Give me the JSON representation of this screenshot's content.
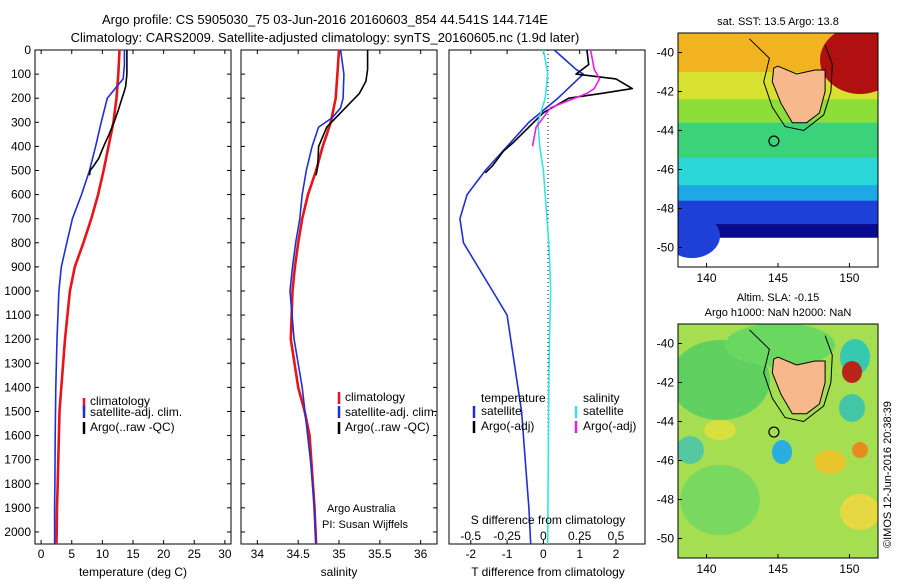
{
  "header": {
    "line1": "Argo profile: CS 5905030_75 03-Jun-2016 20160603_854 44.541S 144.714E",
    "line2": "Climatology: CARS2009. Satellite-adjusted climatology: synTS_20160605.nc (1.9d later)"
  },
  "colors": {
    "climatology": "#e8141a",
    "satellite": "#1f2fd6",
    "argo": "#000000",
    "sal_satellite": "#33e5e5",
    "sal_argo": "#e61ee6",
    "land": "#f7b88c"
  },
  "chart_data": [
    {
      "type": "line",
      "name": "temperature",
      "xlabel": "temperature (deg C)",
      "ylabel": "",
      "xlim": [
        -1,
        31
      ],
      "ylim": [
        2050,
        0
      ],
      "xticks": [
        0,
        5,
        10,
        15,
        20,
        25,
        30
      ],
      "yticks": [
        0,
        100,
        200,
        300,
        400,
        500,
        600,
        700,
        800,
        900,
        1000,
        1100,
        1200,
        1300,
        1400,
        1500,
        1600,
        1700,
        1800,
        1900,
        2000
      ],
      "legend": [
        "climatology",
        "satellite-adj. clim.",
        "Argo(..raw -QC)"
      ],
      "legend_position": "lower-middle",
      "series": [
        {
          "name": "climatology",
          "color": "#e8141a",
          "x": [
            12.8,
            12.6,
            12.3,
            11.8,
            11.0,
            10.2,
            9.3,
            8.2,
            6.9,
            5.5,
            4.7,
            3.9,
            3.3,
            3.0,
            2.9,
            2.8,
            2.7,
            2.6,
            2.55,
            2.5
          ],
          "y": [
            0,
            100,
            200,
            300,
            400,
            500,
            600,
            700,
            800,
            900,
            1000,
            1200,
            1400,
            1500,
            1600,
            1700,
            1800,
            1900,
            2000,
            2050
          ]
        },
        {
          "name": "satellite-adj. clim.",
          "color": "#1f2fd6",
          "x": [
            13.6,
            13.6,
            13.4,
            12.4,
            10.8,
            9.8,
            8.9,
            7.9,
            6.6,
            5.1,
            4.2,
            3.3,
            2.9,
            2.6,
            2.4,
            2.3,
            2.25,
            2.2,
            2.2,
            2.2
          ],
          "y": [
            0,
            60,
            120,
            150,
            200,
            300,
            400,
            500,
            600,
            700,
            800,
            900,
            1000,
            1200,
            1400,
            1600,
            1800,
            1900,
            2000,
            2050
          ]
        },
        {
          "name": "Argo(..raw -QC)",
          "color": "#000000",
          "x": [
            14.0,
            14.0,
            13.8,
            13.6,
            13.2,
            12.6,
            11.9,
            11.1,
            10.2,
            9.4,
            8.6,
            8.0,
            7.9
          ],
          "y": [
            0,
            100,
            150,
            170,
            200,
            250,
            300,
            350,
            400,
            450,
            480,
            500,
            520
          ]
        }
      ]
    },
    {
      "type": "line",
      "name": "salinity",
      "xlabel": "salinity",
      "ylabel": "",
      "xlim": [
        33.8,
        36.2
      ],
      "ylim": [
        2050,
        0
      ],
      "xticks": [
        34,
        34.5,
        35,
        35.5,
        36
      ],
      "legend": [
        "climatology",
        "satellite-adj. clim.",
        "Argo(..raw -QC)"
      ],
      "legend_position": "lower-middle",
      "annotations": [
        "Argo Australia",
        "PI: Susan Wijffels"
      ],
      "series": [
        {
          "name": "climatology",
          "color": "#e8141a",
          "x": [
            35.0,
            34.98,
            34.96,
            34.9,
            34.8,
            34.72,
            34.62,
            34.55,
            34.5,
            34.46,
            34.43,
            34.41,
            34.5,
            34.58,
            34.64,
            34.68,
            34.7,
            34.72
          ],
          "y": [
            0,
            100,
            200,
            300,
            400,
            500,
            600,
            700,
            800,
            900,
            1000,
            1200,
            1400,
            1500,
            1600,
            1800,
            1900,
            2050
          ]
        },
        {
          "name": "satellite-adj. clim.",
          "color": "#1f2fd6",
          "x": [
            35.02,
            35.06,
            35.05,
            35.02,
            34.92,
            34.75,
            34.67,
            34.6,
            34.55,
            34.52,
            34.47,
            34.43,
            34.4,
            34.45,
            34.55,
            34.65,
            34.7,
            34.72
          ],
          "y": [
            0,
            100,
            200,
            240,
            280,
            320,
            400,
            500,
            600,
            700,
            800,
            900,
            1000,
            1200,
            1400,
            1700,
            1900,
            2050
          ]
        },
        {
          "name": "Argo(..raw -QC)",
          "color": "#000000",
          "x": [
            35.35,
            35.35,
            35.33,
            35.25,
            35.05,
            34.85,
            34.75,
            34.74,
            34.72
          ],
          "y": [
            0,
            80,
            130,
            180,
            250,
            320,
            400,
            480,
            520
          ]
        }
      ]
    },
    {
      "type": "line",
      "name": "differences",
      "xlabel": "T difference from climatology",
      "xlabel_top": "S difference from climatology",
      "xlim": [
        -2.6,
        2.8
      ],
      "ylim": [
        2050,
        0
      ],
      "xticks": [
        -2,
        -1,
        0,
        1,
        2
      ],
      "xticks_s": [
        -0.5,
        -0.25,
        0,
        0.25,
        0.5
      ],
      "legend_temperature_title": "temperature",
      "legend_salinity_title": "salinity",
      "legend": [
        "satellite",
        "Argo(-adj)",
        "satellite",
        "Argo(-adj)"
      ],
      "series": [
        {
          "name": "satellite",
          "group": "temperature",
          "color": "#1f2fd6",
          "x": [
            0.3,
            0.6,
            0.9,
            1.1,
            0.4,
            -0.4,
            -1.0,
            -1.6,
            -2.1,
            -2.3,
            -2.2,
            -1.8,
            -1.4,
            -1.0,
            -0.8,
            -0.6,
            -0.5,
            -0.4,
            -0.35
          ],
          "y": [
            0,
            40,
            80,
            100,
            200,
            300,
            400,
            500,
            600,
            700,
            800,
            900,
            1000,
            1100,
            1300,
            1500,
            1700,
            1900,
            2050
          ]
        },
        {
          "name": "Argo(-adj)",
          "group": "temperature",
          "color": "#000000",
          "x": [
            1.2,
            1.25,
            0.9,
            2.0,
            2.45,
            1.6,
            0.7,
            0.0,
            -0.4,
            -0.8,
            -1.1,
            -1.4,
            -1.6
          ],
          "y": [
            0,
            60,
            100,
            120,
            160,
            180,
            200,
            260,
            320,
            380,
            420,
            480,
            510
          ]
        },
        {
          "name": "satellite",
          "group": "salinity",
          "color": "#33e5e5",
          "x": [
            0.0,
            0.1,
            0.12,
            0.05,
            -0.15,
            -0.1,
            0.0,
            0.05,
            0.1,
            0.15,
            0.18,
            0.2,
            0.17,
            0.15,
            0.14,
            0.13,
            0.12
          ],
          "y": [
            0,
            80,
            100,
            200,
            300,
            400,
            500,
            600,
            700,
            800,
            900,
            1000,
            1200,
            1400,
            1600,
            1800,
            2050
          ]
        },
        {
          "name": "Argo(-adj)",
          "group": "salinity",
          "color": "#e61ee6",
          "x": [
            1.3,
            1.35,
            1.4,
            1.55,
            1.4,
            1.3,
            1.2,
            0.2,
            -0.2,
            -0.3
          ],
          "y": [
            0,
            40,
            80,
            120,
            160,
            170,
            180,
            240,
            320,
            400
          ]
        }
      ]
    },
    {
      "type": "heatmap",
      "name": "sst-map",
      "title": "sat. SST: 13.5 Argo: 13.8",
      "xlim": [
        138,
        152
      ],
      "ylim": [
        -51,
        -39
      ],
      "xticks": [
        140,
        145,
        150
      ],
      "yticks": [
        -40,
        -42,
        -44,
        -46,
        -48,
        -50
      ],
      "argo_position": [
        144.714,
        -44.541
      ],
      "regions": [
        {
          "kind": "band",
          "value_color": "#0a0a8c",
          "ymax": -49.5
        },
        {
          "kind": "band",
          "value_color": "#1e40d8",
          "ymax": -48.8
        },
        {
          "kind": "band",
          "value_color": "#1fa8e6",
          "ymax": -47.6
        },
        {
          "kind": "band",
          "value_color": "#2ad6d6",
          "ymax": -46.8
        },
        {
          "kind": "band",
          "value_color": "#3bd37a",
          "ymax": -45.4
        },
        {
          "kind": "band",
          "value_color": "#8ede3a",
          "ymax": -43.6
        },
        {
          "kind": "band",
          "value_color": "#d8e030",
          "ymax": -42.4
        },
        {
          "kind": "band",
          "value_color": "#f2b320",
          "ymax": -41.0
        },
        {
          "kind": "band",
          "value_color": "#e8801a",
          "ymax": -39.0
        }
      ]
    },
    {
      "type": "heatmap",
      "name": "sla-map",
      "title": "Altim. SLA: -0.15",
      "subtitle": "Argo h1000: NaN h2000: NaN",
      "xlim": [
        138,
        152
      ],
      "ylim": [
        -51,
        -39
      ],
      "xticks": [
        140,
        145,
        150
      ],
      "yticks": [
        -40,
        -42,
        -44,
        -46,
        -48,
        -50
      ],
      "argo_position": [
        144.714,
        -44.541
      ]
    }
  ],
  "stamp": "©IMOS 12-Jun-2016 20:38:39"
}
